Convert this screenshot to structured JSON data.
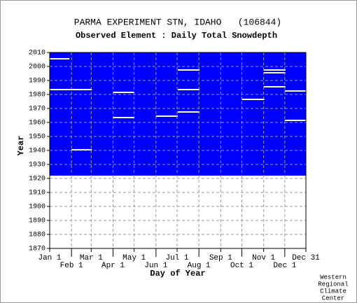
{
  "chart_data": {
    "type": "heatmap",
    "title": "PARMA EXPERIMENT STN, IDAHO   (106844)",
    "subtitle": "Observed Element : Daily Total Snowdepth",
    "x_label": "Day of Year",
    "y_label": "Year",
    "credit": [
      "Western",
      "Regional",
      "Climate",
      "Center"
    ],
    "color": "#0000ff",
    "grid": true,
    "xlim": [
      1,
      365
    ],
    "ylim": [
      1870,
      2010
    ],
    "xticks": [
      {
        "value": 1,
        "label": "Jan 1"
      },
      {
        "value": 32,
        "label": "Feb 1"
      },
      {
        "value": 60,
        "label": "Mar 1"
      },
      {
        "value": 91,
        "label": "Apr 1"
      },
      {
        "value": 121,
        "label": "May 1"
      },
      {
        "value": 152,
        "label": "Jun 1"
      },
      {
        "value": 182,
        "label": "Jul 1"
      },
      {
        "value": 213,
        "label": "Aug 1"
      },
      {
        "value": 244,
        "label": "Sep 1"
      },
      {
        "value": 274,
        "label": "Oct 1"
      },
      {
        "value": 305,
        "label": "Nov 1"
      },
      {
        "value": 335,
        "label": "Dec 1"
      },
      {
        "value": 365,
        "label": "Dec 31"
      }
    ],
    "yticks": [
      1870,
      1880,
      1890,
      1900,
      1910,
      1920,
      1930,
      1940,
      1950,
      1960,
      1970,
      1980,
      1990,
      2000,
      2010
    ],
    "coverage": {
      "start_year": 1922,
      "end_year": 2010
    },
    "missing": [
      {
        "year": 2005,
        "start_day": 1,
        "end_day": 28
      },
      {
        "year": 1983,
        "start_day": 1,
        "end_day": 60
      },
      {
        "year": 1940,
        "start_day": 32,
        "end_day": 60
      },
      {
        "year": 1981,
        "start_day": 91,
        "end_day": 120
      },
      {
        "year": 1963,
        "start_day": 91,
        "end_day": 120
      },
      {
        "year": 1964,
        "start_day": 152,
        "end_day": 182
      },
      {
        "year": 1997,
        "start_day": 183,
        "end_day": 213
      },
      {
        "year": 1983,
        "start_day": 183,
        "end_day": 213
      },
      {
        "year": 1967,
        "start_day": 183,
        "end_day": 213
      },
      {
        "year": 1976,
        "start_day": 274,
        "end_day": 305
      },
      {
        "year": 1997,
        "start_day": 305,
        "end_day": 335
      },
      {
        "year": 1995,
        "start_day": 305,
        "end_day": 335
      },
      {
        "year": 1985,
        "start_day": 305,
        "end_day": 335
      },
      {
        "year": 1982,
        "start_day": 335,
        "end_day": 365
      },
      {
        "year": 1961,
        "start_day": 335,
        "end_day": 365
      }
    ]
  }
}
